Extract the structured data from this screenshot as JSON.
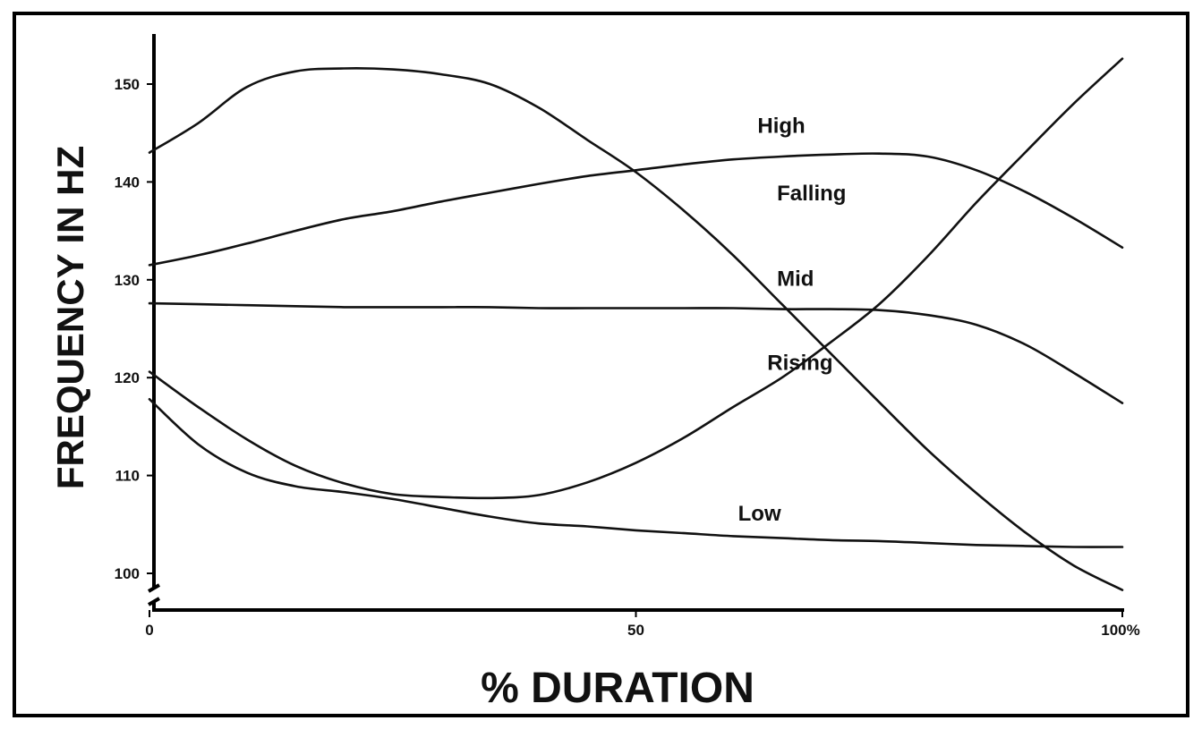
{
  "chart_data": {
    "type": "line",
    "title": "",
    "xlabel": "% DURATION",
    "ylabel": "FREQUENCY IN  HZ",
    "xlim": [
      0,
      100
    ],
    "ylim": [
      96.5,
      155
    ],
    "y_axis_break": true,
    "grid": false,
    "legend": "none (series labelled directly on the curves)",
    "x_ticks": [
      {
        "value": 0,
        "label": "0"
      },
      {
        "value": 50,
        "label": "50"
      },
      {
        "value": 100,
        "label": "100%"
      }
    ],
    "y_ticks": [
      {
        "value": 100,
        "label": "100"
      },
      {
        "value": 110,
        "label": "110"
      },
      {
        "value": 120,
        "label": "120"
      },
      {
        "value": 130,
        "label": "130"
      },
      {
        "value": 140,
        "label": "140"
      },
      {
        "value": 150,
        "label": "150"
      }
    ],
    "x": [
      0,
      5,
      10,
      15,
      20,
      25,
      30,
      35,
      40,
      45,
      50,
      55,
      60,
      65,
      70,
      75,
      80,
      85,
      90,
      95,
      100
    ],
    "series": [
      {
        "name": "High",
        "label_at": [
          62.5,
          145
        ],
        "values": [
          131.5,
          132.5,
          133.7,
          135.0,
          136.2,
          137.0,
          138.0,
          138.9,
          139.8,
          140.6,
          141.2,
          141.8,
          142.3,
          142.6,
          142.8,
          142.9,
          142.6,
          141.2,
          139.0,
          136.3,
          133.3
        ]
      },
      {
        "name": "Falling",
        "label_at": [
          64.5,
          138.1
        ],
        "values": [
          143.0,
          146.0,
          149.7,
          151.3,
          151.6,
          151.5,
          151.0,
          150.0,
          147.6,
          144.3,
          141.0,
          137.0,
          132.5,
          127.5,
          122.5,
          117.5,
          112.6,
          108.2,
          104.2,
          100.8,
          98.3
        ]
      },
      {
        "name": "Mid",
        "label_at": [
          64.5,
          129.4
        ],
        "values": [
          127.6,
          127.5,
          127.4,
          127.3,
          127.2,
          127.2,
          127.2,
          127.2,
          127.1,
          127.1,
          127.1,
          127.1,
          127.1,
          127.0,
          127.0,
          126.9,
          126.4,
          125.4,
          123.4,
          120.5,
          117.4
        ]
      },
      {
        "name": "Rising",
        "label_at": [
          63.5,
          120.8
        ],
        "values": [
          120.6,
          117.0,
          113.7,
          111.0,
          109.2,
          108.1,
          107.8,
          107.7,
          108.0,
          109.3,
          111.3,
          113.9,
          117.0,
          120.0,
          123.6,
          127.5,
          132.4,
          137.9,
          143.0,
          148.0,
          152.6
        ]
      },
      {
        "name": "Low",
        "label_at": [
          60.5,
          105.4
        ],
        "values": [
          117.8,
          113.2,
          110.3,
          108.9,
          108.3,
          107.6,
          106.7,
          105.8,
          105.1,
          104.8,
          104.4,
          104.1,
          103.8,
          103.6,
          103.4,
          103.3,
          103.1,
          102.9,
          102.8,
          102.7,
          102.7
        ]
      }
    ]
  }
}
